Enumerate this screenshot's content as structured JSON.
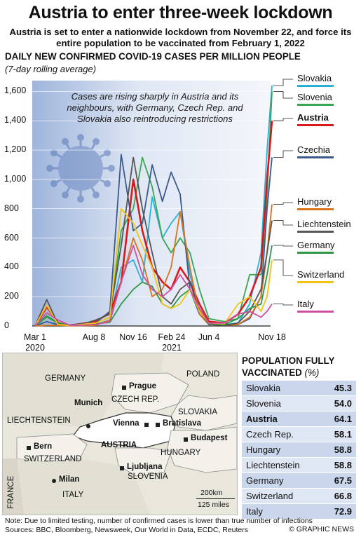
{
  "header": {
    "title": "Austria to enter three-week lockdown",
    "subtitle": "Austria is set to enter a nationwide lockdown from November 22, and force its entire population to be vaccinated from February 1, 2022"
  },
  "chart_data": {
    "type": "line",
    "title": "DAILY NEW CONFIRMED COVID-19 CASES PER MILLION PEOPLE",
    "subtitle": "(7-day rolling average)",
    "annotation": "Cases are rising sharply in Austria and its neighbours, with Germany, Czech Rep. and Slovakia also reintroducing restrictions",
    "x_ticks": [
      "Mar 1",
      "Aug 8",
      "Nov 16",
      "Feb 24",
      "Jun 4",
      "Nov 18"
    ],
    "x_year_labels": [
      "2020",
      "2021"
    ],
    "y_ticks": [
      "0",
      "200",
      "400",
      "600",
      "800",
      "1,000",
      "1,200",
      "1,400",
      "1,600"
    ],
    "ylim": [
      0,
      1650
    ],
    "x": [
      "2020-03-01",
      "2020-04-01",
      "2020-05-01",
      "2020-06-01",
      "2020-07-01",
      "2020-08-08",
      "2020-09-15",
      "2020-10-15",
      "2020-11-16",
      "2020-12-10",
      "2021-01-05",
      "2021-02-01",
      "2021-02-24",
      "2021-03-20",
      "2021-04-15",
      "2021-05-10",
      "2021-06-04",
      "2021-07-15",
      "2021-08-20",
      "2021-09-20",
      "2021-10-20",
      "2021-11-05",
      "2021-11-18"
    ],
    "series": [
      {
        "name": "Slovakia",
        "color": "#29b1d6",
        "values": [
          0,
          30,
          5,
          3,
          5,
          10,
          40,
          400,
          450,
          300,
          880,
          600,
          700,
          780,
          350,
          100,
          20,
          10,
          20,
          150,
          500,
          1200,
          1640
        ]
      },
      {
        "name": "Slovenia",
        "color": "#3aa651",
        "values": [
          0,
          60,
          20,
          5,
          10,
          20,
          60,
          650,
          800,
          1150,
          950,
          600,
          500,
          600,
          500,
          250,
          50,
          30,
          50,
          350,
          350,
          900,
          1600
        ]
      },
      {
        "name": "Austria",
        "color": "#d7191c",
        "values": [
          0,
          130,
          20,
          5,
          15,
          30,
          90,
          300,
          1000,
          650,
          400,
          300,
          250,
          400,
          300,
          150,
          30,
          20,
          80,
          200,
          400,
          1000,
          1400
        ]
      },
      {
        "name": "Czechia",
        "color": "#3d5a8c",
        "values": [
          0,
          30,
          10,
          5,
          15,
          20,
          100,
          1170,
          650,
          700,
          1100,
          850,
          1050,
          900,
          250,
          80,
          10,
          10,
          10,
          50,
          200,
          800,
          1150
        ]
      },
      {
        "name": "Hungary",
        "color": "#d8731a",
        "values": [
          0,
          5,
          5,
          2,
          2,
          5,
          40,
          300,
          600,
          450,
          200,
          250,
          400,
          780,
          400,
          80,
          10,
          5,
          10,
          60,
          200,
          500,
          830
        ]
      },
      {
        "name": "Liechtenstein",
        "color": "#555555",
        "values": [
          0,
          180,
          10,
          5,
          10,
          40,
          80,
          550,
          1150,
          800,
          500,
          200,
          150,
          250,
          300,
          100,
          10,
          5,
          20,
          100,
          250,
          500,
          720
        ]
      },
      {
        "name": "Germany",
        "color": "#2e9944",
        "values": [
          0,
          70,
          20,
          5,
          5,
          15,
          25,
          150,
          250,
          300,
          270,
          150,
          120,
          200,
          250,
          120,
          15,
          10,
          50,
          120,
          150,
          350,
          550
        ]
      },
      {
        "name": "Switzerland",
        "color": "#f2c318",
        "values": [
          0,
          140,
          10,
          3,
          10,
          20,
          60,
          800,
          700,
          550,
          400,
          150,
          120,
          150,
          250,
          100,
          20,
          15,
          150,
          200,
          100,
          200,
          450
        ]
      },
      {
        "name": "Italy",
        "color": "#cf4fa0",
        "values": [
          0,
          90,
          40,
          5,
          5,
          10,
          30,
          300,
          550,
          350,
          250,
          200,
          250,
          350,
          250,
          120,
          20,
          20,
          80,
          100,
          60,
          100,
          150
        ]
      }
    ]
  },
  "legend": {
    "items": [
      {
        "label": "Slovakia",
        "color": "#29b1d6",
        "bold": false
      },
      {
        "label": "Slovenia",
        "color": "#3aa651",
        "bold": false
      },
      {
        "label": "Austria",
        "color": "#d7191c",
        "bold": true
      },
      {
        "label": "Czechia",
        "color": "#3d5a8c",
        "bold": false
      },
      {
        "label": "Hungary",
        "color": "#d8731a",
        "bold": false
      },
      {
        "label": "Liechtenstein",
        "color": "#555555",
        "bold": false
      },
      {
        "label": "Germany",
        "color": "#2e9944",
        "bold": false
      },
      {
        "label": "Switzerland",
        "color": "#f2c318",
        "bold": false
      },
      {
        "label": "Italy",
        "color": "#cf4fa0",
        "bold": false
      }
    ]
  },
  "map": {
    "countries": [
      "GERMANY",
      "POLAND",
      "CZECH REP.",
      "SLOVAKIA",
      "LIECHTENSTEIN",
      "AUSTRIA",
      "HUNGARY",
      "SWITZERLAND",
      "SLOVENIA",
      "ITALY",
      "FRANCE"
    ],
    "cities": [
      "Prague",
      "Munich",
      "Vienna",
      "Bratislava",
      "Budapest",
      "Bern",
      "Ljubljana",
      "Milan"
    ],
    "scale_km": "200km",
    "scale_miles": "125 miles"
  },
  "vaccination": {
    "title": "POPULATION FULLY VACCINATED",
    "unit": "(%)",
    "rows": [
      {
        "country": "Slovakia",
        "value": "45.3",
        "bold": false
      },
      {
        "country": "Slovenia",
        "value": "54.0",
        "bold": false
      },
      {
        "country": "Austria",
        "value": "64.1",
        "bold": true
      },
      {
        "country": "Czech Rep.",
        "value": "58.1",
        "bold": false
      },
      {
        "country": "Hungary",
        "value": "58.8",
        "bold": false
      },
      {
        "country": "Liechtenstein",
        "value": "58.8",
        "bold": false
      },
      {
        "country": "Germany",
        "value": "67.5",
        "bold": false
      },
      {
        "country": "Switzerland",
        "value": "66.8",
        "bold": false
      },
      {
        "country": "Italy",
        "value": "72.9",
        "bold": false
      }
    ],
    "row_colors": [
      "#c9d6ec",
      "#dfe6f4"
    ]
  },
  "footer": {
    "note": "Note: Due to limited testing, number of confirmed cases is lower than true number of infections",
    "sources": "Sources: BBC, Bloomberg, Newsweek, Our World in Data, ECDC, Reuters",
    "credit": "© GRAPHIC NEWS"
  }
}
